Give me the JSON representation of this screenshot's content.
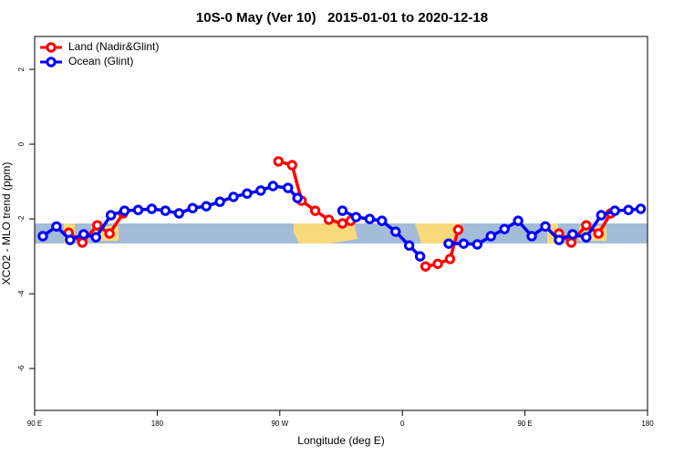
{
  "chart_data": {
    "type": "line",
    "title": "10S-0 May (Ver 10)   2015-01-01 to 2020-12-18",
    "x_label": "Longitude (deg E)",
    "y_label": "XCO2 - MLO trend (ppm)",
    "xlim": [
      90,
      540
    ],
    "ylim": [
      -7.12,
      2.88
    ],
    "xticks": [
      {
        "value": 90,
        "label": "90 E"
      },
      180,
      {
        "value": 270,
        "label": "90 W"
      },
      {
        "value": 360,
        "label": "0"
      },
      {
        "value": 450,
        "label": "90 E"
      },
      {
        "value": 540,
        "label": "180"
      }
    ],
    "yticks": [
      -6,
      -4,
      -2,
      0,
      2
    ],
    "legend": "top-left",
    "series": [
      {
        "name": "Land (Nadir&Glint)",
        "color": "#ff0000",
        "x": [
          115,
          125,
          136,
          145,
          155,
          null,
          269,
          279,
          286,
          296,
          306,
          316,
          322,
          null,
          377,
          386,
          395,
          401,
          null,
          475,
          484,
          495,
          504,
          513
        ],
        "values": [
          -2.37,
          -2.63,
          -2.17,
          -2.39,
          -1.85,
          null,
          -0.46,
          -0.56,
          -1.51,
          -1.78,
          -2.02,
          -2.12,
          -2.05,
          null,
          -3.27,
          -3.2,
          -3.07,
          -2.29,
          null,
          -2.39,
          -2.63,
          -2.17,
          -2.39,
          -1.85
        ]
      },
      {
        "name": "Ocean (Glint)",
        "color": "#0000ff",
        "x": [
          96,
          106,
          116,
          126,
          135,
          146,
          156,
          166,
          176,
          186,
          196,
          206,
          216,
          226,
          236,
          246,
          256,
          265,
          276,
          283,
          null,
          316,
          326,
          336,
          345,
          355,
          365,
          373,
          null,
          394,
          405,
          415,
          425,
          435,
          445,
          455,
          465,
          475,
          485,
          495,
          506,
          516,
          526,
          535
        ],
        "values": [
          -2.46,
          -2.2,
          -2.56,
          -2.41,
          -2.49,
          -1.9,
          -1.78,
          -1.76,
          -1.73,
          -1.78,
          -1.85,
          -1.71,
          -1.66,
          -1.54,
          -1.41,
          -1.32,
          -1.24,
          -1.12,
          -1.17,
          -1.44,
          null,
          -1.78,
          -1.95,
          -2.0,
          -2.05,
          -2.34,
          -2.71,
          -3.0,
          null,
          -2.66,
          -2.66,
          -2.68,
          -2.46,
          -2.27,
          -2.05,
          -2.46,
          -2.2,
          -2.56,
          -2.41,
          -2.49,
          -1.9,
          -1.78,
          -1.76,
          -1.73
        ]
      }
    ]
  }
}
